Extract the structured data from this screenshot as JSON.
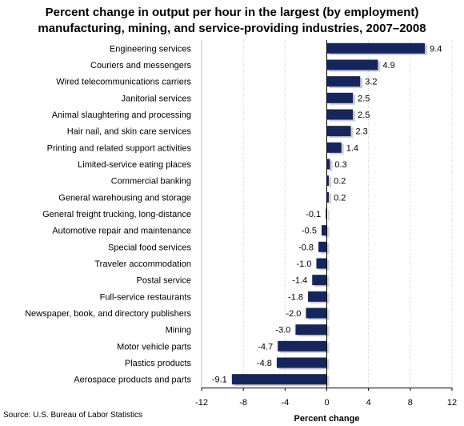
{
  "title_line1": "Percent change  in output per hour in the largest (by employment)",
  "title_line2": "manufacturing,  mining, and service-providing  industries, 2007–2008",
  "source": "Source: U.S. Bureau  of Labor Statistics",
  "chart_data": {
    "type": "bar",
    "orientation": "horizontal",
    "title": "Percent change in output per hour in the largest (by employment) manufacturing, mining, and service-providing industries, 2007–2008",
    "xlabel": "Percent change",
    "ylabel": "",
    "xlim": [
      -12,
      12
    ],
    "xticks": [
      -12,
      -8,
      -4,
      0,
      4,
      8,
      12
    ],
    "grid": "vertical-dotted",
    "bar_color": "#17255d",
    "categories": [
      "Engineering services",
      "Couriers and messengers",
      "Wired telecommunications carriers",
      "Janitorial services",
      "Animal slaughtering and processing",
      "Hair nail, and skin care services",
      "Printing and related support activities",
      "Limited-service eating places",
      "Commercial banking",
      "General warehousing and storage",
      "General freight trucking, long-distance",
      "Automotive repair and maintenance",
      "Special food services",
      "Traveler accommodation",
      "Postal service",
      "Full-service restaurants",
      "Newspaper, book, and directory publishers",
      "Mining",
      "Motor vehicle parts",
      "Plastics products",
      "Aerospace products and parts"
    ],
    "values": [
      9.4,
      4.9,
      3.2,
      2.5,
      2.5,
      2.3,
      1.4,
      0.3,
      0.2,
      0.2,
      -0.1,
      -0.5,
      -0.8,
      -1.0,
      -1.4,
      -1.8,
      -2.0,
      -3.0,
      -4.7,
      -4.8,
      -9.1
    ],
    "value_labels": [
      "9.4",
      "4.9",
      "3.2",
      "2.5",
      "2.5",
      "2.3",
      "1.4",
      "0.3",
      "0.2",
      "0.2",
      "-0.1",
      "-0.5",
      "-0.8",
      "-1.0",
      "-1.4",
      "-1.8",
      "-2.0",
      "-3.0",
      "-4.7",
      "-4.8",
      "-9.1"
    ]
  }
}
